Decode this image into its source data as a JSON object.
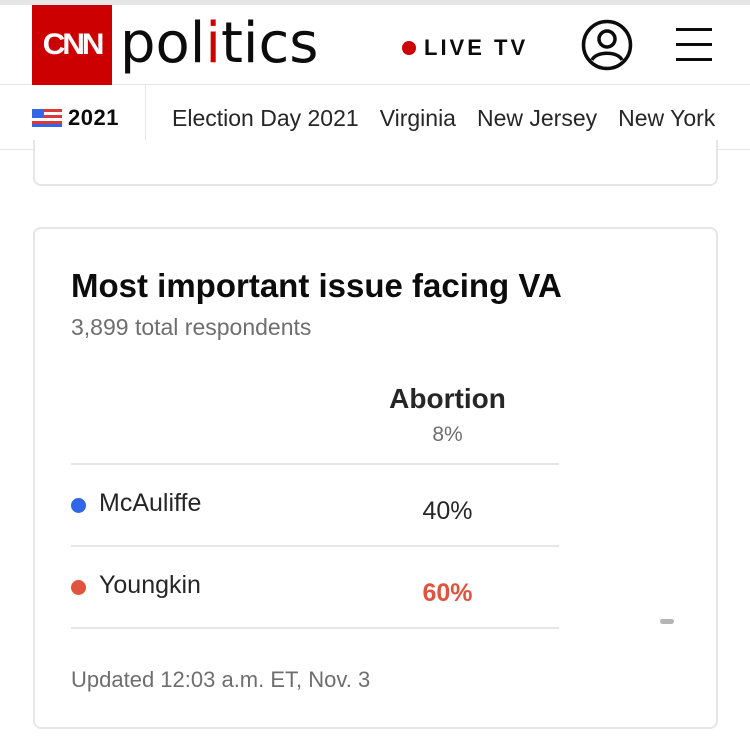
{
  "header": {
    "brand_logo": "CNN",
    "brand_section_prefix": "pol",
    "brand_section_accent": "i",
    "brand_section_suffix": "tics",
    "live_label": "LIVE TV",
    "icons": {
      "account": "account-icon",
      "menu": "hamburger-menu-icon",
      "live": "live-dot-icon"
    }
  },
  "subnav": {
    "year_label": "2021",
    "links": [
      "Election Day 2021",
      "Virginia",
      "New Jersey",
      "New York"
    ]
  },
  "card": {
    "title": "Most important issue facing VA",
    "subtitle": "3,899 total respondents",
    "column": {
      "label": "Abortion",
      "share": "8%"
    },
    "rows": [
      {
        "candidate": "McAuliffe",
        "value": "40%",
        "dot_color": "#3366e6",
        "winner": false
      },
      {
        "candidate": "Youngkin",
        "value": "60%",
        "dot_color": "#e0533e",
        "winner": true
      }
    ],
    "updated": "Updated 12:03 a.m. ET, Nov. 3"
  },
  "colors": {
    "brand_red": "#cc0000",
    "winner_red": "#e0533e",
    "dem_blue": "#3366e6"
  }
}
